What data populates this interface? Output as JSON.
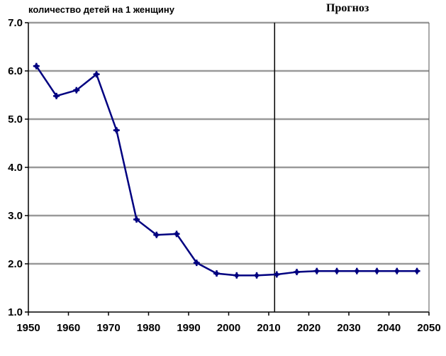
{
  "chart_data": {
    "type": "line",
    "ylabel": "количество детей на 1 женщину",
    "annotation": "Прогноз",
    "xlim": [
      1950,
      2050
    ],
    "ylim": [
      1.0,
      7.0
    ],
    "x_ticks": [
      1950,
      1960,
      1970,
      1980,
      1990,
      2000,
      2010,
      2020,
      2030,
      2040,
      2050
    ],
    "y_ticks": [
      "1.0",
      "2.0",
      "3.0",
      "4.0",
      "5.0",
      "6.0",
      "7.0"
    ],
    "forecast_start": 2012,
    "grid": true,
    "series": [
      {
        "x": [
          1952,
          1957,
          1962,
          1967,
          1972,
          1977,
          1982,
          1987,
          1992,
          1997,
          2002,
          2007,
          2012,
          2017,
          2022,
          2027,
          2032,
          2037,
          2042,
          2047
        ],
        "y": [
          6.1,
          5.48,
          5.6,
          5.93,
          4.77,
          2.92,
          2.6,
          2.62,
          2.02,
          1.8,
          1.76,
          1.76,
          1.78,
          1.83,
          1.85,
          1.85,
          1.85,
          1.85,
          1.85,
          1.85
        ]
      }
    ],
    "colors": {
      "line": "#000080",
      "grid": "#999999",
      "axis": "#000000"
    }
  }
}
